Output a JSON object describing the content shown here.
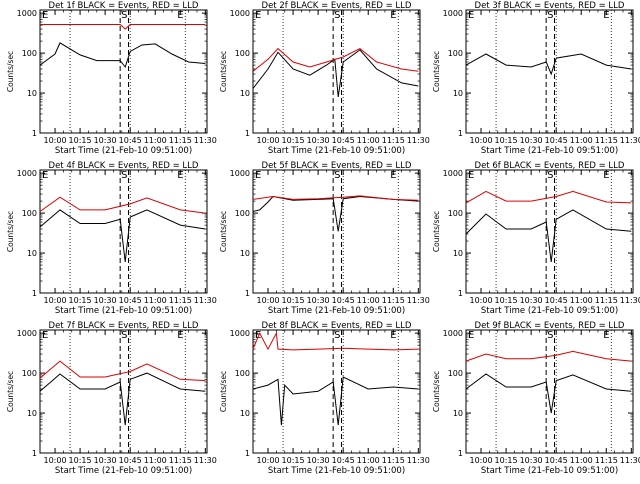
{
  "colors": {
    "events": "#000000",
    "lld": "#dd0000",
    "background": "#ffffff"
  },
  "xlabel": "Start Time (21-Feb-10 09:51:00)",
  "ylabel": "Counts/sec",
  "x_tick_labels": [
    "10:00",
    "10:15",
    "10:30",
    "10:45",
    "11:00",
    "11:15",
    "11:30"
  ],
  "y_tick_labels": [
    "1",
    "10",
    "100",
    "1000"
  ],
  "markers": {
    "e_left": "E",
    "s": "S",
    "e_right": "E"
  },
  "chart_data": [
    {
      "type": "line",
      "title": "Det 1f BLACK = Events, RED = LLD",
      "xlabel": "Start Time (21-Feb-10 09:51:00)",
      "ylabel": "Counts/sec",
      "xlim": [
        "09:51",
        "11:31"
      ],
      "ylim": [
        1,
        1200
      ],
      "yscale": "log",
      "vlines_dotted": [
        "10:09",
        "10:45",
        "11:18"
      ],
      "vlines_dashed": [
        "10:39",
        "10:44"
      ],
      "series": [
        {
          "name": "Events",
          "x": [
            "09:51",
            "10:00",
            "10:03",
            "10:15",
            "10:25",
            "10:39",
            "10:42",
            "10:45",
            "10:52",
            "11:00",
            "11:10",
            "11:20",
            "11:30"
          ],
          "y": [
            50,
            95,
            180,
            90,
            65,
            65,
            45,
            110,
            160,
            170,
            95,
            60,
            55
          ]
        },
        {
          "name": "LLD",
          "x": [
            "09:51",
            "10:03",
            "10:30",
            "10:39",
            "10:42",
            "10:45",
            "11:00",
            "11:15",
            "11:30"
          ],
          "y": [
            520,
            520,
            520,
            520,
            400,
            520,
            520,
            520,
            520
          ]
        }
      ]
    },
    {
      "type": "line",
      "title": "Det 2f BLACK = Events, RED = LLD",
      "xlabel": "Start Time (21-Feb-10 09:51:00)",
      "ylabel": "Counts/sec",
      "xlim": [
        "09:51",
        "11:31"
      ],
      "ylim": [
        1,
        1200
      ],
      "yscale": "log",
      "vlines_dotted": [
        "10:09",
        "10:45",
        "11:18"
      ],
      "vlines_dashed": [
        "10:39",
        "10:44"
      ],
      "series": [
        {
          "name": "Events",
          "x": [
            "09:51",
            "10:00",
            "10:06",
            "10:15",
            "10:25",
            "10:35",
            "10:40",
            "10:42",
            "10:45",
            "10:55",
            "11:05",
            "11:20",
            "11:30"
          ],
          "y": [
            13,
            40,
            105,
            40,
            28,
            50,
            70,
            8,
            60,
            120,
            40,
            18,
            15
          ]
        },
        {
          "name": "LLD",
          "x": [
            "09:51",
            "10:00",
            "10:06",
            "10:15",
            "10:25",
            "10:35",
            "10:45",
            "10:55",
            "11:05",
            "11:20",
            "11:30"
          ],
          "y": [
            35,
            70,
            130,
            60,
            45,
            60,
            80,
            130,
            60,
            40,
            35
          ]
        }
      ]
    },
    {
      "type": "line",
      "title": "Det 3f BLACK = Events, RED = LLD",
      "xlabel": "Start Time (21-Feb-10 09:51:00)",
      "ylabel": "Counts/sec",
      "xlim": [
        "09:51",
        "11:31"
      ],
      "ylim": [
        1,
        1200
      ],
      "yscale": "log",
      "vlines_dotted": [
        "10:09",
        "10:45",
        "11:18"
      ],
      "vlines_dashed": [
        "10:39",
        "10:44"
      ],
      "series": [
        {
          "name": "Events",
          "x": [
            "09:51",
            "10:03",
            "10:15",
            "10:30",
            "10:39",
            "10:42",
            "10:45",
            "11:00",
            "11:15",
            "11:30"
          ],
          "y": [
            50,
            95,
            50,
            45,
            60,
            30,
            75,
            95,
            50,
            40
          ]
        }
      ]
    },
    {
      "type": "line",
      "title": "Det 4f BLACK = Events, RED = LLD",
      "xlabel": "Start Time (21-Feb-10 09:51:00)",
      "ylabel": "Counts/sec",
      "xlim": [
        "09:51",
        "11:31"
      ],
      "ylim": [
        1,
        1200
      ],
      "yscale": "log",
      "vlines_dotted": [
        "10:09",
        "10:45",
        "11:18"
      ],
      "vlines_dashed": [
        "10:39",
        "10:44"
      ],
      "series": [
        {
          "name": "Events",
          "x": [
            "09:51",
            "10:03",
            "10:15",
            "10:30",
            "10:39",
            "10:42",
            "10:45",
            "10:55",
            "11:15",
            "11:30"
          ],
          "y": [
            45,
            120,
            55,
            55,
            70,
            6,
            80,
            120,
            50,
            40
          ]
        },
        {
          "name": "LLD",
          "x": [
            "09:51",
            "10:03",
            "10:15",
            "10:30",
            "10:45",
            "10:55",
            "11:15",
            "11:30"
          ],
          "y": [
            110,
            250,
            120,
            120,
            170,
            240,
            120,
            100
          ]
        }
      ]
    },
    {
      "type": "line",
      "title": "Det 5f BLACK = Events, RED = LLD",
      "xlabel": "Start Time (21-Feb-10 09:51:00)",
      "ylabel": "Counts/sec",
      "xlim": [
        "09:51",
        "11:31"
      ],
      "ylim": [
        1,
        1200
      ],
      "yscale": "log",
      "vlines_dotted": [
        "10:09",
        "10:45",
        "11:18"
      ],
      "vlines_dashed": [
        "10:39",
        "10:44"
      ],
      "series": [
        {
          "name": "Events",
          "x": [
            "09:51",
            "09:55",
            "10:00",
            "10:03",
            "10:15",
            "10:30",
            "10:39",
            "10:42",
            "10:45",
            "10:55",
            "11:15",
            "11:30"
          ],
          "y": [
            110,
            120,
            190,
            260,
            210,
            220,
            230,
            35,
            230,
            260,
            220,
            200
          ]
        },
        {
          "name": "LLD",
          "x": [
            "09:51",
            "10:03",
            "10:15",
            "10:30",
            "10:45",
            "10:55",
            "11:15",
            "11:30"
          ],
          "y": [
            220,
            260,
            220,
            230,
            250,
            270,
            220,
            210
          ]
        }
      ]
    },
    {
      "type": "line",
      "title": "Det 6f BLACK = Events, RED = LLD",
      "xlabel": "Start Time (21-Feb-10 09:51:00)",
      "ylabel": "Counts/sec",
      "xlim": [
        "09:51",
        "11:31"
      ],
      "ylim": [
        1,
        1200
      ],
      "yscale": "log",
      "vlines_dotted": [
        "10:09",
        "10:45",
        "11:18"
      ],
      "vlines_dashed": [
        "10:39",
        "10:44"
      ],
      "series": [
        {
          "name": "Events",
          "x": [
            "09:51",
            "10:03",
            "10:15",
            "10:30",
            "10:39",
            "10:42",
            "10:45",
            "10:55",
            "11:15",
            "11:30"
          ],
          "y": [
            30,
            95,
            40,
            40,
            60,
            6,
            70,
            120,
            40,
            35
          ]
        },
        {
          "name": "LLD",
          "x": [
            "09:51",
            "10:03",
            "10:15",
            "10:30",
            "10:45",
            "10:55",
            "11:15",
            "11:30"
          ],
          "y": [
            180,
            350,
            200,
            200,
            260,
            350,
            190,
            180
          ]
        }
      ]
    },
    {
      "type": "line",
      "title": "Det 7f BLACK = Events, RED = LLD",
      "xlabel": "Start Time (21-Feb-10 09:51:00)",
      "ylabel": "Counts/sec",
      "xlim": [
        "09:51",
        "11:31"
      ],
      "ylim": [
        1,
        1200
      ],
      "yscale": "log",
      "vlines_dotted": [
        "10:09",
        "10:45",
        "11:18"
      ],
      "vlines_dashed": [
        "10:39",
        "10:44"
      ],
      "series": [
        {
          "name": "Events",
          "x": [
            "09:51",
            "10:03",
            "10:15",
            "10:30",
            "10:39",
            "10:42",
            "10:45",
            "10:55",
            "11:15",
            "11:30"
          ],
          "y": [
            35,
            95,
            40,
            40,
            60,
            5,
            70,
            100,
            40,
            35
          ]
        },
        {
          "name": "LLD",
          "x": [
            "09:51",
            "10:03",
            "10:15",
            "10:30",
            "10:45",
            "10:55",
            "11:15",
            "11:30"
          ],
          "y": [
            75,
            200,
            80,
            80,
            110,
            170,
            70,
            65
          ]
        }
      ]
    },
    {
      "type": "line",
      "title": "Det 8f BLACK = Events, RED = LLD",
      "xlabel": "Start Time (21-Feb-10 09:51:00)",
      "ylabel": "Counts/sec",
      "xlim": [
        "09:51",
        "11:31"
      ],
      "ylim": [
        1,
        1200
      ],
      "yscale": "log",
      "vlines_dotted": [
        "10:09",
        "10:45",
        "11:18"
      ],
      "vlines_dashed": [
        "10:39",
        "10:44"
      ],
      "series": [
        {
          "name": "Events",
          "x": [
            "09:51",
            "10:00",
            "10:06",
            "10:08",
            "10:10",
            "10:15",
            "10:30",
            "10:39",
            "10:42",
            "10:45",
            "11:00",
            "11:15",
            "11:30"
          ],
          "y": [
            40,
            50,
            70,
            5,
            50,
            30,
            35,
            60,
            5,
            80,
            40,
            45,
            40
          ]
        },
        {
          "name": "LLD",
          "x": [
            "09:51",
            "09:55",
            "10:00",
            "10:05",
            "10:06",
            "10:15",
            "10:30",
            "10:45",
            "11:00",
            "11:15",
            "11:30"
          ],
          "y": [
            400,
            1000,
            400,
            1000,
            400,
            380,
            400,
            420,
            400,
            380,
            400
          ]
        }
      ]
    },
    {
      "type": "line",
      "title": "Det 9f BLACK = Events, RED = LLD",
      "xlabel": "Start Time (21-Feb-10 09:51:00)",
      "ylabel": "Counts/sec",
      "xlim": [
        "09:51",
        "11:31"
      ],
      "ylim": [
        1,
        1200
      ],
      "yscale": "log",
      "vlines_dotted": [
        "10:09",
        "10:45",
        "11:18"
      ],
      "vlines_dashed": [
        "10:39",
        "10:44"
      ],
      "series": [
        {
          "name": "Events",
          "x": [
            "09:51",
            "10:03",
            "10:15",
            "10:30",
            "10:39",
            "10:42",
            "10:45",
            "10:55",
            "11:15",
            "11:30"
          ],
          "y": [
            40,
            95,
            45,
            45,
            60,
            10,
            65,
            90,
            40,
            35
          ]
        },
        {
          "name": "LLD",
          "x": [
            "09:51",
            "10:03",
            "10:15",
            "10:30",
            "10:45",
            "10:55",
            "11:15",
            "11:30"
          ],
          "y": [
            200,
            300,
            230,
            230,
            280,
            350,
            230,
            200
          ]
        }
      ]
    }
  ]
}
